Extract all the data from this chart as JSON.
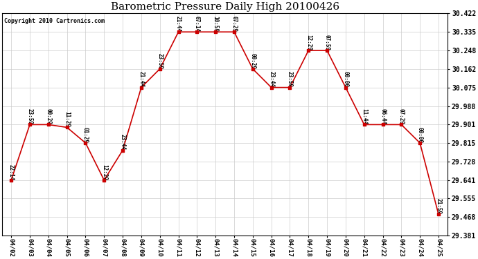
{
  "title": "Barometric Pressure Daily High 20100426",
  "copyright": "Copyright 2010 Cartronics.com",
  "background_color": "#ffffff",
  "plot_bg_color": "#ffffff",
  "grid_color": "#cccccc",
  "line_color": "#cc0000",
  "marker_color": "#cc0000",
  "dates": [
    "04/02",
    "04/03",
    "04/04",
    "04/05",
    "04/06",
    "04/07",
    "04/08",
    "04/09",
    "04/10",
    "04/11",
    "04/12",
    "04/13",
    "04/14",
    "04/15",
    "04/16",
    "04/17",
    "04/18",
    "04/19",
    "04/20",
    "04/21",
    "04/22",
    "04/23",
    "04/24",
    "04/25"
  ],
  "values": [
    29.641,
    29.901,
    29.901,
    29.888,
    29.815,
    29.641,
    29.781,
    30.075,
    30.162,
    30.335,
    30.335,
    30.335,
    30.335,
    30.162,
    30.075,
    30.075,
    30.248,
    30.248,
    30.075,
    29.901,
    29.901,
    29.901,
    29.815,
    29.481
  ],
  "annotations": [
    "22:14",
    "23:59",
    "00:29",
    "11:29",
    "01:29",
    "12:29",
    "23:44",
    "21:44",
    "23:59",
    "21:44",
    "07:14",
    "10:59",
    "07:29",
    "00:29",
    "23:44",
    "23:59",
    "12:29",
    "07:59",
    "00:00",
    "11:44",
    "06:44",
    "07:29",
    "00:00",
    "21:59"
  ],
  "ylim_min": 29.381,
  "ylim_max": 30.422,
  "yticks": [
    29.381,
    29.468,
    29.555,
    29.641,
    29.728,
    29.815,
    29.901,
    29.988,
    30.075,
    30.162,
    30.248,
    30.335,
    30.422
  ],
  "title_fontsize": 11,
  "annotation_fontsize": 5.5,
  "xlabel_fontsize": 6.5,
  "ylabel_fontsize": 7,
  "copyright_fontsize": 6
}
